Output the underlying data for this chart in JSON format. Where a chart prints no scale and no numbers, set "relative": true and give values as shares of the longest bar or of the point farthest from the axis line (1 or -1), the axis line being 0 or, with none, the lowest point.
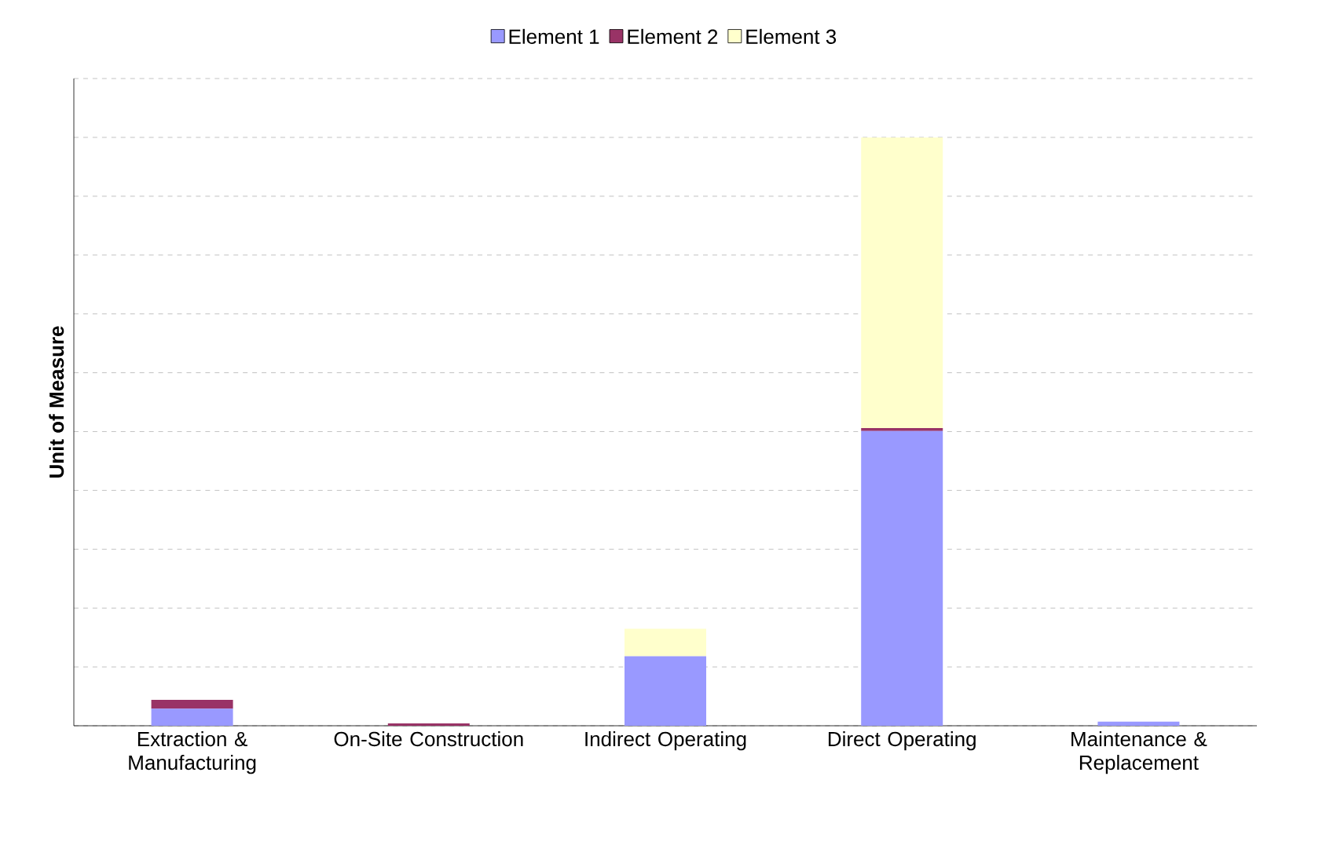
{
  "chart_data": {
    "type": "bar",
    "stacked": true,
    "relative": true,
    "ylabel": "Unit of Measure",
    "categories": [
      "Extraction & Manufacturing",
      "On-Site Construction",
      "Indirect Operating",
      "Direct Operating",
      "Maintenance & Replacement"
    ],
    "series": [
      {
        "name": "Element 1",
        "color": "#9999ff",
        "values": [
          0.029,
          0,
          0.118,
          0.501,
          0.007
        ]
      },
      {
        "name": "Element 2",
        "color": "#993366",
        "values": [
          0.015,
          0.004,
          0,
          0.005,
          0
        ]
      },
      {
        "name": "Element 3",
        "color": "#ffffcc",
        "values": [
          0,
          0,
          0.047,
          0.494,
          0
        ]
      }
    ],
    "grid": "y",
    "legend": "top"
  }
}
